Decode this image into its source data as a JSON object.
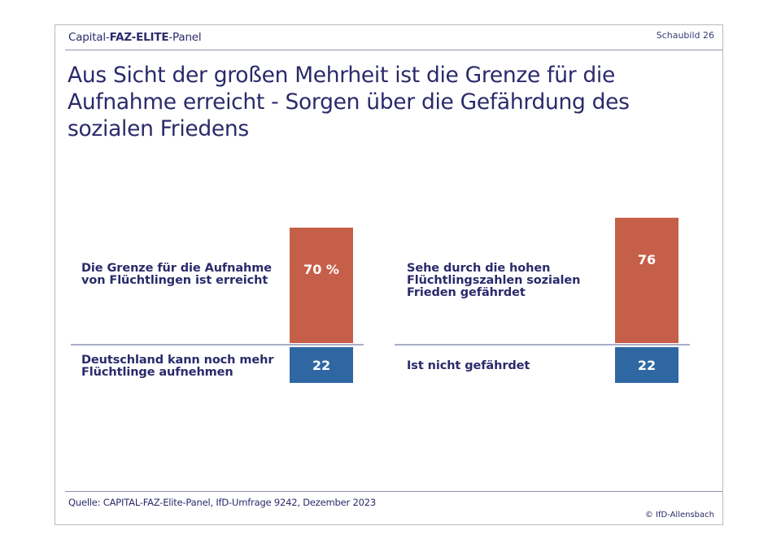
{
  "header": {
    "brand_parts": [
      "Capital-",
      "FAZ-ELITE",
      "-Panel"
    ],
    "chart_number": "Schaubild 26"
  },
  "title": "Aus Sicht der großen Mehrheit ist die Grenze für die Aufnahme erreicht - Sorgen über die Gefährdung des sozialen Friedens",
  "footer": {
    "source": "Quelle: CAPITAL-FAZ-Elite-Panel, IfD-Umfrage 9242, Dezember 2023",
    "copyright": "© IfD-Allensbach"
  },
  "colors": {
    "positive": "#c65f49",
    "negative": "#2f67a3",
    "text": "#2b2a6b",
    "baseline": "#a9adc8"
  },
  "chart_data": [
    {
      "type": "bar",
      "stacked_diverging": true,
      "unit": "%",
      "categories": [
        "Die Grenze für die Aufnahme von Flüchtlingen ist erreicht",
        "Deutschland kann noch mehr Flüchtlinge aufnehmen"
      ],
      "label_lines": [
        [
          "Die Grenze für die Aufnahme",
          "von Flüchtlingen ist erreicht"
        ],
        [
          "Deutschland kann noch mehr",
          "Flüchtlinge aufnehmen"
        ]
      ],
      "values": [
        70,
        22
      ],
      "value_labels": [
        "70 %",
        "22"
      ],
      "series_colors": [
        "positive",
        "negative"
      ]
    },
    {
      "type": "bar",
      "stacked_diverging": true,
      "unit": "%",
      "categories": [
        "Sehe durch die hohen Flüchtlingszahlen sozialen Frieden gefährdet",
        "Ist nicht gefährdet"
      ],
      "label_lines": [
        [
          "Sehe durch die hohen",
          "Flüchtlingszahlen sozialen",
          "Frieden gefährdet"
        ],
        [
          "Ist nicht gefährdet"
        ]
      ],
      "values": [
        76,
        22
      ],
      "value_labels": [
        "76",
        "22"
      ],
      "series_colors": [
        "positive",
        "negative"
      ]
    }
  ]
}
